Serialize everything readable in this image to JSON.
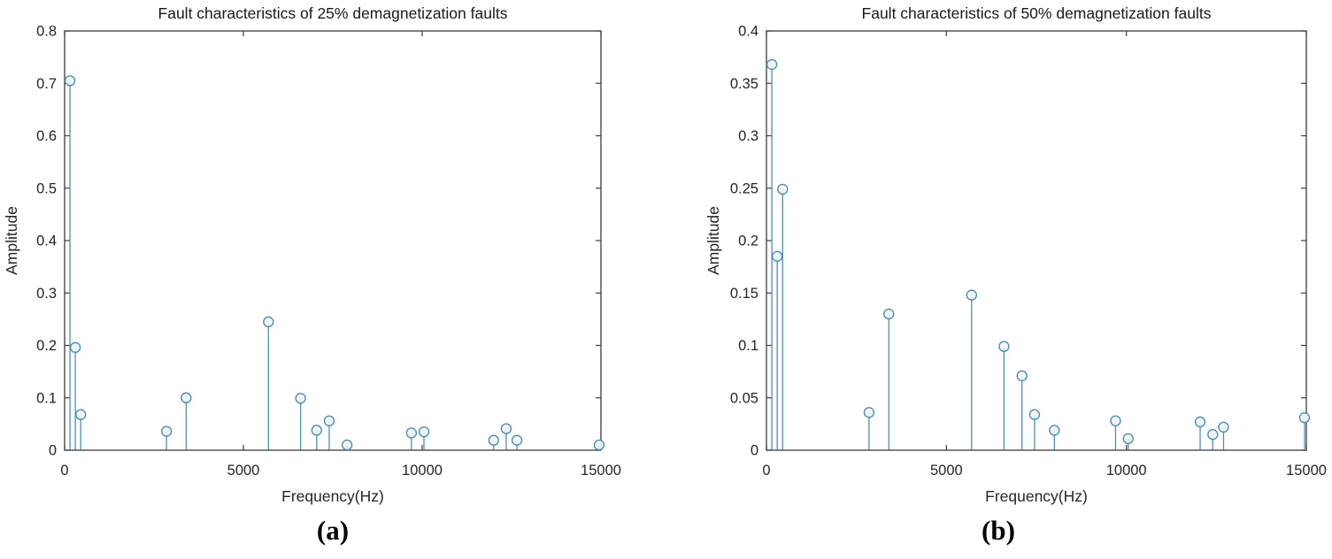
{
  "figure_colors": {
    "stem_line": "#4e8fb3",
    "marker_stroke": "#4e8fb3",
    "marker_fill": "#eef5fa",
    "axis_line": "#3c3c3c",
    "tick_text": "#262626",
    "title_text": "#1a1a1a"
  },
  "chart_data": [
    {
      "type": "stem",
      "caption": "(a)",
      "title": "Fault characteristics of 25% demagnetization faults",
      "xlabel": "Frequency(Hz)",
      "ylabel": "Amplitude",
      "xlim": [
        0,
        15000
      ],
      "ylim": [
        0,
        0.8
      ],
      "xticks": [
        0,
        5000,
        10000,
        15000
      ],
      "xtick_labels": [
        "0",
        "5000",
        "10000",
        "15000"
      ],
      "yticks": [
        0,
        0.1,
        0.2,
        0.3,
        0.4,
        0.5,
        0.6,
        0.7,
        0.8
      ],
      "ytick_labels": [
        "0",
        "0.1",
        "0.2",
        "0.3",
        "0.4",
        "0.5",
        "0.6",
        "0.7",
        "0.8"
      ],
      "grid": false,
      "legend": null,
      "points": [
        {
          "x": 150,
          "y": 0.705
        },
        {
          "x": 300,
          "y": 0.196
        },
        {
          "x": 450,
          "y": 0.068
        },
        {
          "x": 2850,
          "y": 0.036
        },
        {
          "x": 3400,
          "y": 0.1
        },
        {
          "x": 5700,
          "y": 0.245
        },
        {
          "x": 6600,
          "y": 0.099
        },
        {
          "x": 7050,
          "y": 0.038
        },
        {
          "x": 7400,
          "y": 0.056
        },
        {
          "x": 7900,
          "y": 0.01
        },
        {
          "x": 9700,
          "y": 0.033
        },
        {
          "x": 10050,
          "y": 0.035
        },
        {
          "x": 12000,
          "y": 0.019
        },
        {
          "x": 12350,
          "y": 0.041
        },
        {
          "x": 12650,
          "y": 0.019
        },
        {
          "x": 14950,
          "y": 0.01
        }
      ]
    },
    {
      "type": "stem",
      "caption": "(b)",
      "title": "Fault characteristics of 50% demagnetization faults",
      "xlabel": "Frequency(Hz)",
      "ylabel": "Amplitude",
      "xlim": [
        0,
        15000
      ],
      "ylim": [
        0,
        0.4
      ],
      "xticks": [
        0,
        5000,
        10000,
        15000
      ],
      "xtick_labels": [
        "0",
        "5000",
        "10000",
        "15000"
      ],
      "yticks": [
        0,
        0.05,
        0.1,
        0.15,
        0.2,
        0.25,
        0.3,
        0.35,
        0.4
      ],
      "ytick_labels": [
        "0",
        "0.05",
        "0.1",
        "0.15",
        "0.2",
        "0.25",
        "0.3",
        "0.35",
        "0.4"
      ],
      "grid": false,
      "legend": null,
      "points": [
        {
          "x": 150,
          "y": 0.368
        },
        {
          "x": 300,
          "y": 0.185
        },
        {
          "x": 450,
          "y": 0.249
        },
        {
          "x": 2850,
          "y": 0.036
        },
        {
          "x": 3400,
          "y": 0.13
        },
        {
          "x": 5700,
          "y": 0.148
        },
        {
          "x": 6600,
          "y": 0.099
        },
        {
          "x": 7100,
          "y": 0.071
        },
        {
          "x": 7450,
          "y": 0.034
        },
        {
          "x": 8000,
          "y": 0.019
        },
        {
          "x": 9700,
          "y": 0.028
        },
        {
          "x": 10050,
          "y": 0.011
        },
        {
          "x": 12050,
          "y": 0.027
        },
        {
          "x": 12400,
          "y": 0.015
        },
        {
          "x": 12700,
          "y": 0.022
        },
        {
          "x": 14950,
          "y": 0.031
        }
      ]
    }
  ]
}
